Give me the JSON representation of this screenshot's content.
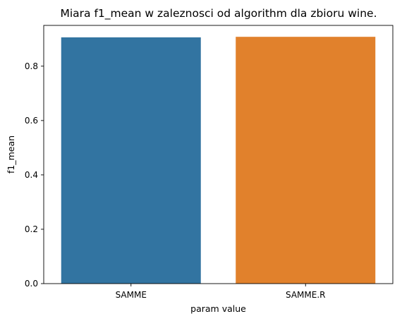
{
  "chart_data": {
    "type": "bar",
    "title": "Miara f1_mean w zaleznosci od algorithm dla zbioru wine.",
    "xlabel": "param value",
    "ylabel": "f1_mean",
    "categories": [
      "SAMME",
      "SAMME.R"
    ],
    "values": [
      0.906,
      0.908
    ],
    "colors": [
      "#3274a1",
      "#e1812c"
    ],
    "ylim": [
      0,
      0.95
    ],
    "yticks": [
      0.0,
      0.2,
      0.4,
      0.6,
      0.8
    ],
    "ytick_labels": [
      "0.0",
      "0.2",
      "0.4",
      "0.6",
      "0.8"
    ],
    "grid": false,
    "legend": "none"
  }
}
